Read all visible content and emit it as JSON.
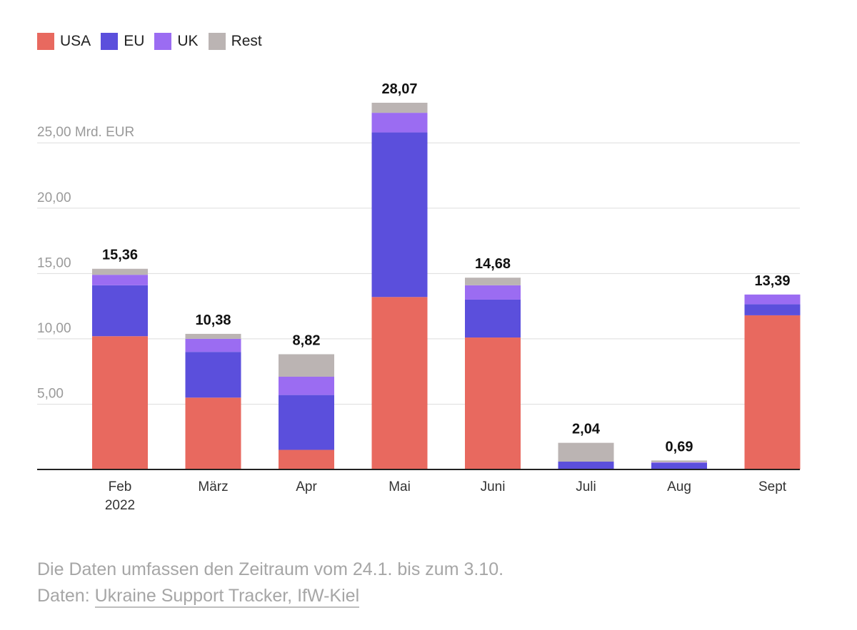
{
  "chart_data": {
    "type": "bar",
    "stacked": true,
    "categories": [
      "Feb 2022",
      "März",
      "Apr",
      "Mai",
      "Juni",
      "Juli",
      "Aug",
      "Sept"
    ],
    "category_labels": [
      [
        "Feb",
        "2022"
      ],
      [
        "März"
      ],
      [
        "Apr"
      ],
      [
        "Mai"
      ],
      [
        "Juni"
      ],
      [
        "Juli"
      ],
      [
        "Aug"
      ],
      [
        "Sept"
      ]
    ],
    "series": [
      {
        "name": "USA",
        "color": "#e8695f",
        "values": [
          10.2,
          5.5,
          1.5,
          13.2,
          10.1,
          0.0,
          0.0,
          11.8
        ]
      },
      {
        "name": "EU",
        "color": "#5b4fdc",
        "values": [
          3.9,
          3.5,
          4.2,
          12.6,
          2.9,
          0.6,
          0.5,
          0.85
        ]
      },
      {
        "name": "UK",
        "color": "#9b6cf2",
        "values": [
          0.8,
          1.0,
          1.4,
          1.5,
          1.1,
          0.0,
          0.05,
          0.74
        ]
      },
      {
        "name": "Rest",
        "color": "#bbb4b3",
        "values": [
          0.46,
          0.38,
          1.72,
          0.77,
          0.58,
          1.44,
          0.14,
          0.0
        ]
      }
    ],
    "totals": [
      "15,36",
      "10,38",
      "8,82",
      "28,07",
      "14,68",
      "2,04",
      "0,69",
      "13,39"
    ],
    "y_ticks": [
      {
        "value": 5,
        "label": "5,00"
      },
      {
        "value": 10,
        "label": "10,00"
      },
      {
        "value": 15,
        "label": "15,00"
      },
      {
        "value": 20,
        "label": "20,00"
      },
      {
        "value": 25,
        "label": "25,00 Mrd. EUR"
      }
    ],
    "ylim": [
      0,
      28.07
    ],
    "grid": true,
    "legend_position": "top-left"
  },
  "footer": {
    "note": "Die Daten umfassen den Zeitraum vom 24.1. bis zum 3.10.",
    "source_prefix": "Daten: ",
    "source_link": "Ukraine Support Tracker, IfW-Kiel"
  }
}
